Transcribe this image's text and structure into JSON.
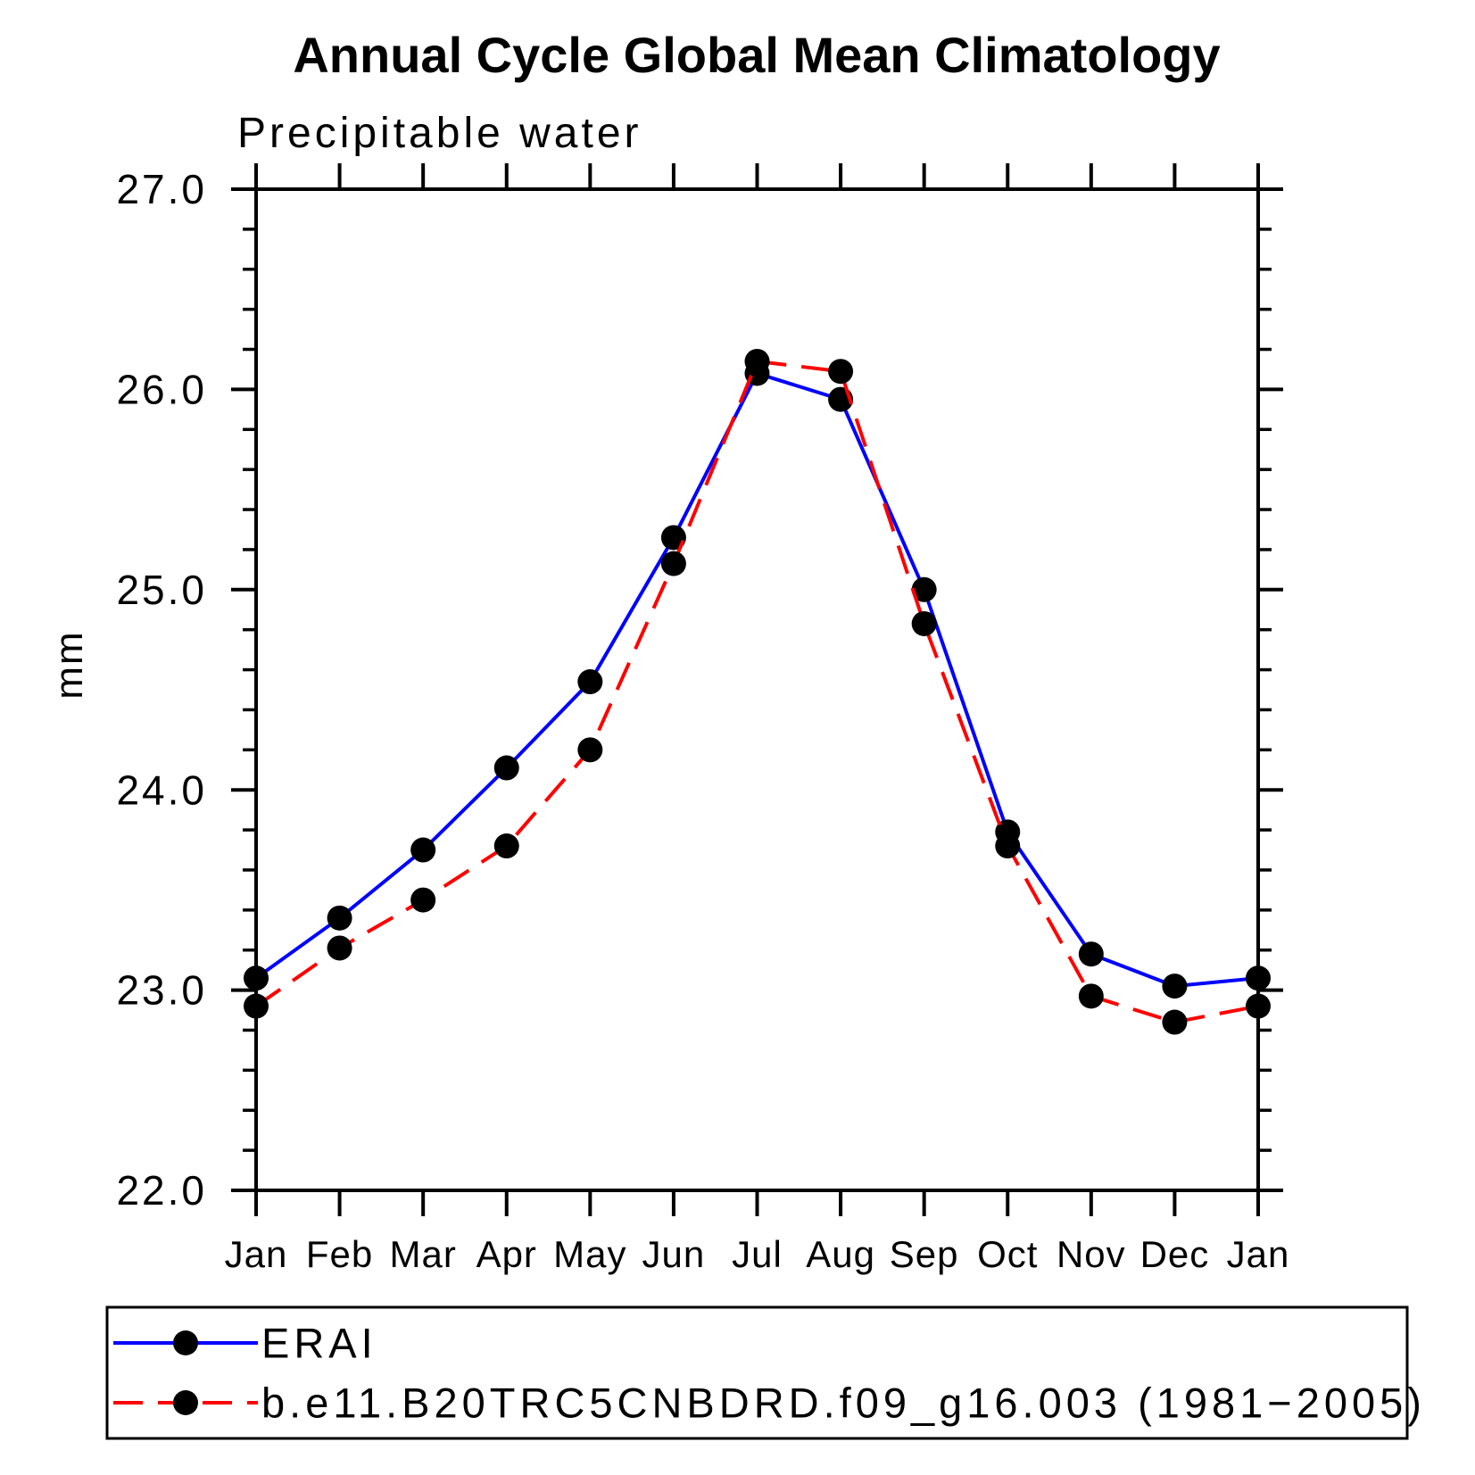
{
  "title": "Annual Cycle Global Mean Climatology",
  "subtitle": "Precipitable water",
  "y_axis_label": "mm",
  "chart_data": {
    "type": "line",
    "categories": [
      "Jan",
      "Feb",
      "Mar",
      "Apr",
      "May",
      "Jun",
      "Jul",
      "Aug",
      "Sep",
      "Oct",
      "Nov",
      "Dec",
      "Jan"
    ],
    "series": [
      {
        "name": "ERAI",
        "color": "#0000ff",
        "line_style": "solid",
        "marker": "filled-circle",
        "marker_color": "#000000",
        "values": [
          23.06,
          23.36,
          23.7,
          24.11,
          24.54,
          25.26,
          26.08,
          25.95,
          25.0,
          23.79,
          23.18,
          23.02,
          23.06
        ]
      },
      {
        "name": "b.e11.B20TRC5CNBDRD.f09_g16.003 (1981−2005)",
        "color": "#ff0000",
        "line_style": "dashed",
        "marker": "filled-circle",
        "marker_color": "#000000",
        "values": [
          22.92,
          23.21,
          23.45,
          23.72,
          24.2,
          25.13,
          26.14,
          26.09,
          24.83,
          23.72,
          22.97,
          22.84,
          22.92
        ]
      }
    ],
    "ylim": [
      22.0,
      27.0
    ],
    "ytick_values": [
      27.0,
      26.0,
      25.0,
      24.0,
      23.0,
      22.0
    ],
    "ytick_labels": [
      "27.0",
      "26.0",
      "25.0",
      "24.0",
      "23.0",
      "22.0"
    ],
    "minor_tick_step": 0.2,
    "grid": false,
    "legend_position": "bottom-box"
  }
}
